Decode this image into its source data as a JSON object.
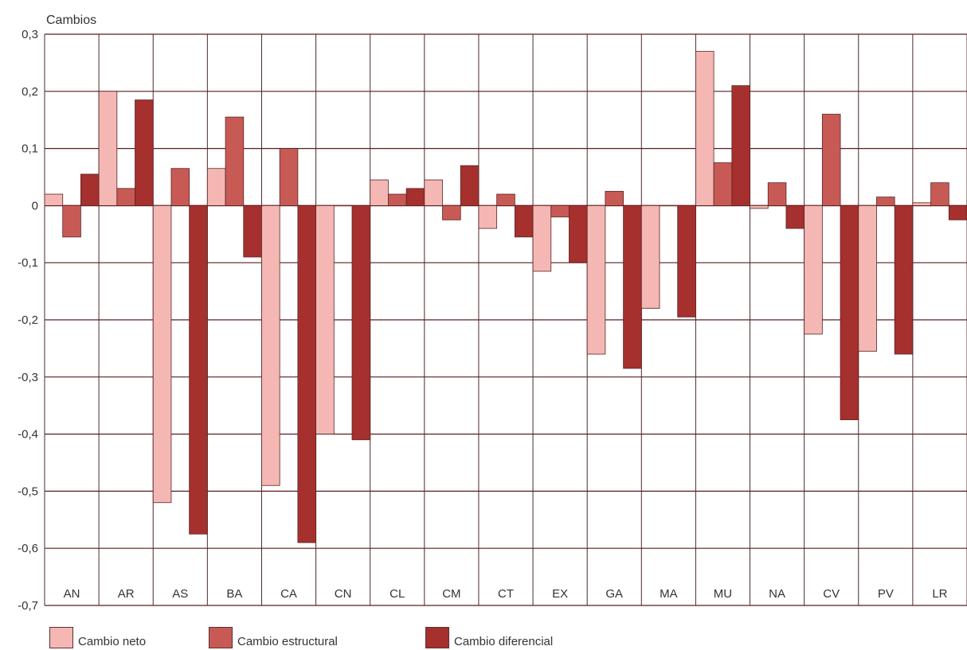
{
  "chart_data": {
    "type": "bar",
    "title": "",
    "ylabel": "Cambios",
    "xlabel": "",
    "ylim": [
      -0.7,
      0.3
    ],
    "y_ticks": [
      "0,3",
      "0,2",
      "0,1",
      "0",
      "-0,1",
      "-0,2",
      "-0,3",
      "-0,4",
      "-0,5",
      "-0,6",
      "-0,7"
    ],
    "y_tick_values": [
      0.3,
      0.2,
      0.1,
      0,
      -0.1,
      -0.2,
      -0.3,
      -0.4,
      -0.5,
      -0.6,
      -0.7
    ],
    "grid": true,
    "legend_position": "bottom",
    "categories": [
      "AN",
      "AR",
      "AS",
      "BA",
      "CA",
      "CN",
      "CL",
      "CM",
      "CT",
      "EX",
      "GA",
      "MA",
      "MU",
      "NA",
      "CV",
      "PV",
      "LR"
    ],
    "series": [
      {
        "name": "Cambio neto",
        "color": "#f4b7b3",
        "values": [
          0.02,
          0.2,
          -0.52,
          0.065,
          -0.49,
          -0.4,
          0.045,
          0.045,
          -0.04,
          -0.115,
          -0.26,
          -0.18,
          0.27,
          -0.005,
          -0.225,
          -0.255,
          0.005
        ]
      },
      {
        "name": "Cambio estructural",
        "color": "#c85a55",
        "values": [
          -0.055,
          0.03,
          0.065,
          0.155,
          0.1,
          0.0,
          0.02,
          -0.025,
          0.02,
          -0.02,
          0.025,
          0.0,
          0.075,
          0.04,
          0.16,
          0.015,
          0.04
        ]
      },
      {
        "name": "Cambio diferencial",
        "color": "#a5302e",
        "values": [
          0.055,
          0.185,
          -0.575,
          -0.09,
          -0.59,
          -0.41,
          0.03,
          0.07,
          -0.055,
          -0.1,
          -0.285,
          -0.195,
          0.21,
          -0.04,
          -0.375,
          -0.26,
          -0.025
        ]
      }
    ]
  }
}
